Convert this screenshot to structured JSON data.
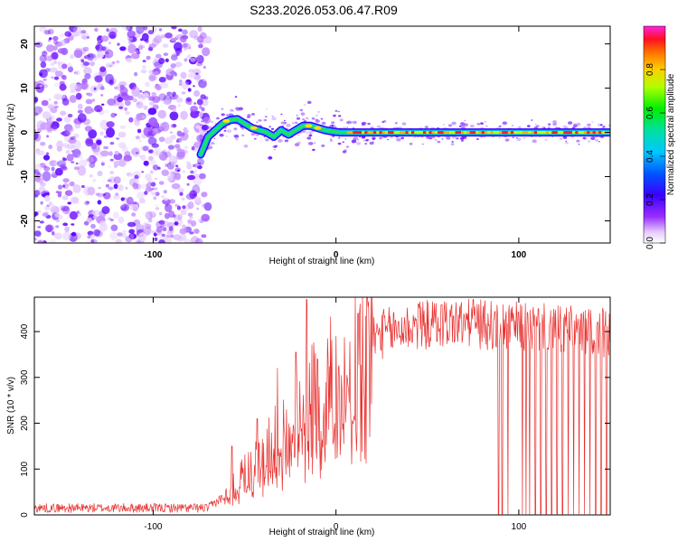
{
  "title": "S233.2026.053.06.47.R09",
  "chart_data": [
    {
      "type": "heatmap",
      "xlabel": "Height of straight line (km)",
      "ylabel": "Frequency (Hz)",
      "xlim": [
        -165,
        150
      ],
      "ylim": [
        -25,
        24
      ],
      "x_ticks": [
        -100,
        0,
        100
      ],
      "y_ticks": [
        -20,
        -10,
        0,
        10,
        20
      ],
      "noise_region_x": [
        -165,
        -70
      ],
      "ridge": {
        "x": [
          -74,
          -70,
          -66,
          -62,
          -58,
          -54,
          -50,
          -46,
          -42,
          -38,
          -34,
          -30,
          -26,
          -22,
          -18,
          -14,
          -10,
          -6,
          -2,
          2,
          10,
          30,
          60,
          90,
          120,
          150
        ],
        "frequency": [
          -5,
          -1,
          0.5,
          2,
          2.8,
          3,
          2,
          1,
          0.5,
          0,
          -1,
          0.5,
          -0.5,
          0.5,
          1.5,
          1.5,
          1,
          0.5,
          0.2,
          0,
          0,
          0,
          0,
          0,
          0,
          0
        ]
      },
      "colorbar": {
        "label": "Normalized spectral amplitude",
        "range": [
          0,
          1
        ],
        "ticks": [
          0.0,
          0.2,
          0.4,
          0.6,
          0.8
        ]
      }
    },
    {
      "type": "line",
      "xlabel": "Height of straight line (km)",
      "ylabel": "SNR (10 * v/v)",
      "xlim": [
        -165,
        150
      ],
      "ylim": [
        0,
        475
      ],
      "x_ticks": [
        -100,
        0,
        100
      ],
      "y_ticks": [
        0,
        100,
        200,
        300,
        400
      ],
      "series": [
        {
          "color": "#e8312f",
          "envelope": {
            "x": [
              -165,
              -70,
              -60,
              -55,
              -45,
              -35,
              -25,
              -15,
              -5,
              0,
              5,
              10,
              15,
              20,
              25,
              30,
              40,
              60,
              80,
              100,
              120,
              150
            ],
            "y": [
              15,
              15,
              45,
              70,
              110,
              150,
              195,
              240,
              280,
              300,
              330,
              350,
              370,
              385,
              395,
              400,
              410,
              420,
              415,
              410,
              405,
              395
            ]
          },
          "peaks": [
            [
              -57,
              150
            ],
            [
              -43,
              210
            ],
            [
              -32,
              320
            ],
            [
              -22,
              355
            ],
            [
              -16,
              470
            ],
            [
              -10,
              340
            ],
            [
              0,
              390
            ],
            [
              12,
              440
            ],
            [
              45,
              460
            ],
            [
              75,
              470
            ]
          ],
          "dropouts_x": [
            89,
            91,
            94,
            102,
            104,
            106,
            109,
            112,
            115,
            118,
            121,
            124,
            127,
            130,
            133,
            136,
            139,
            142,
            145,
            148
          ]
        }
      ]
    }
  ]
}
